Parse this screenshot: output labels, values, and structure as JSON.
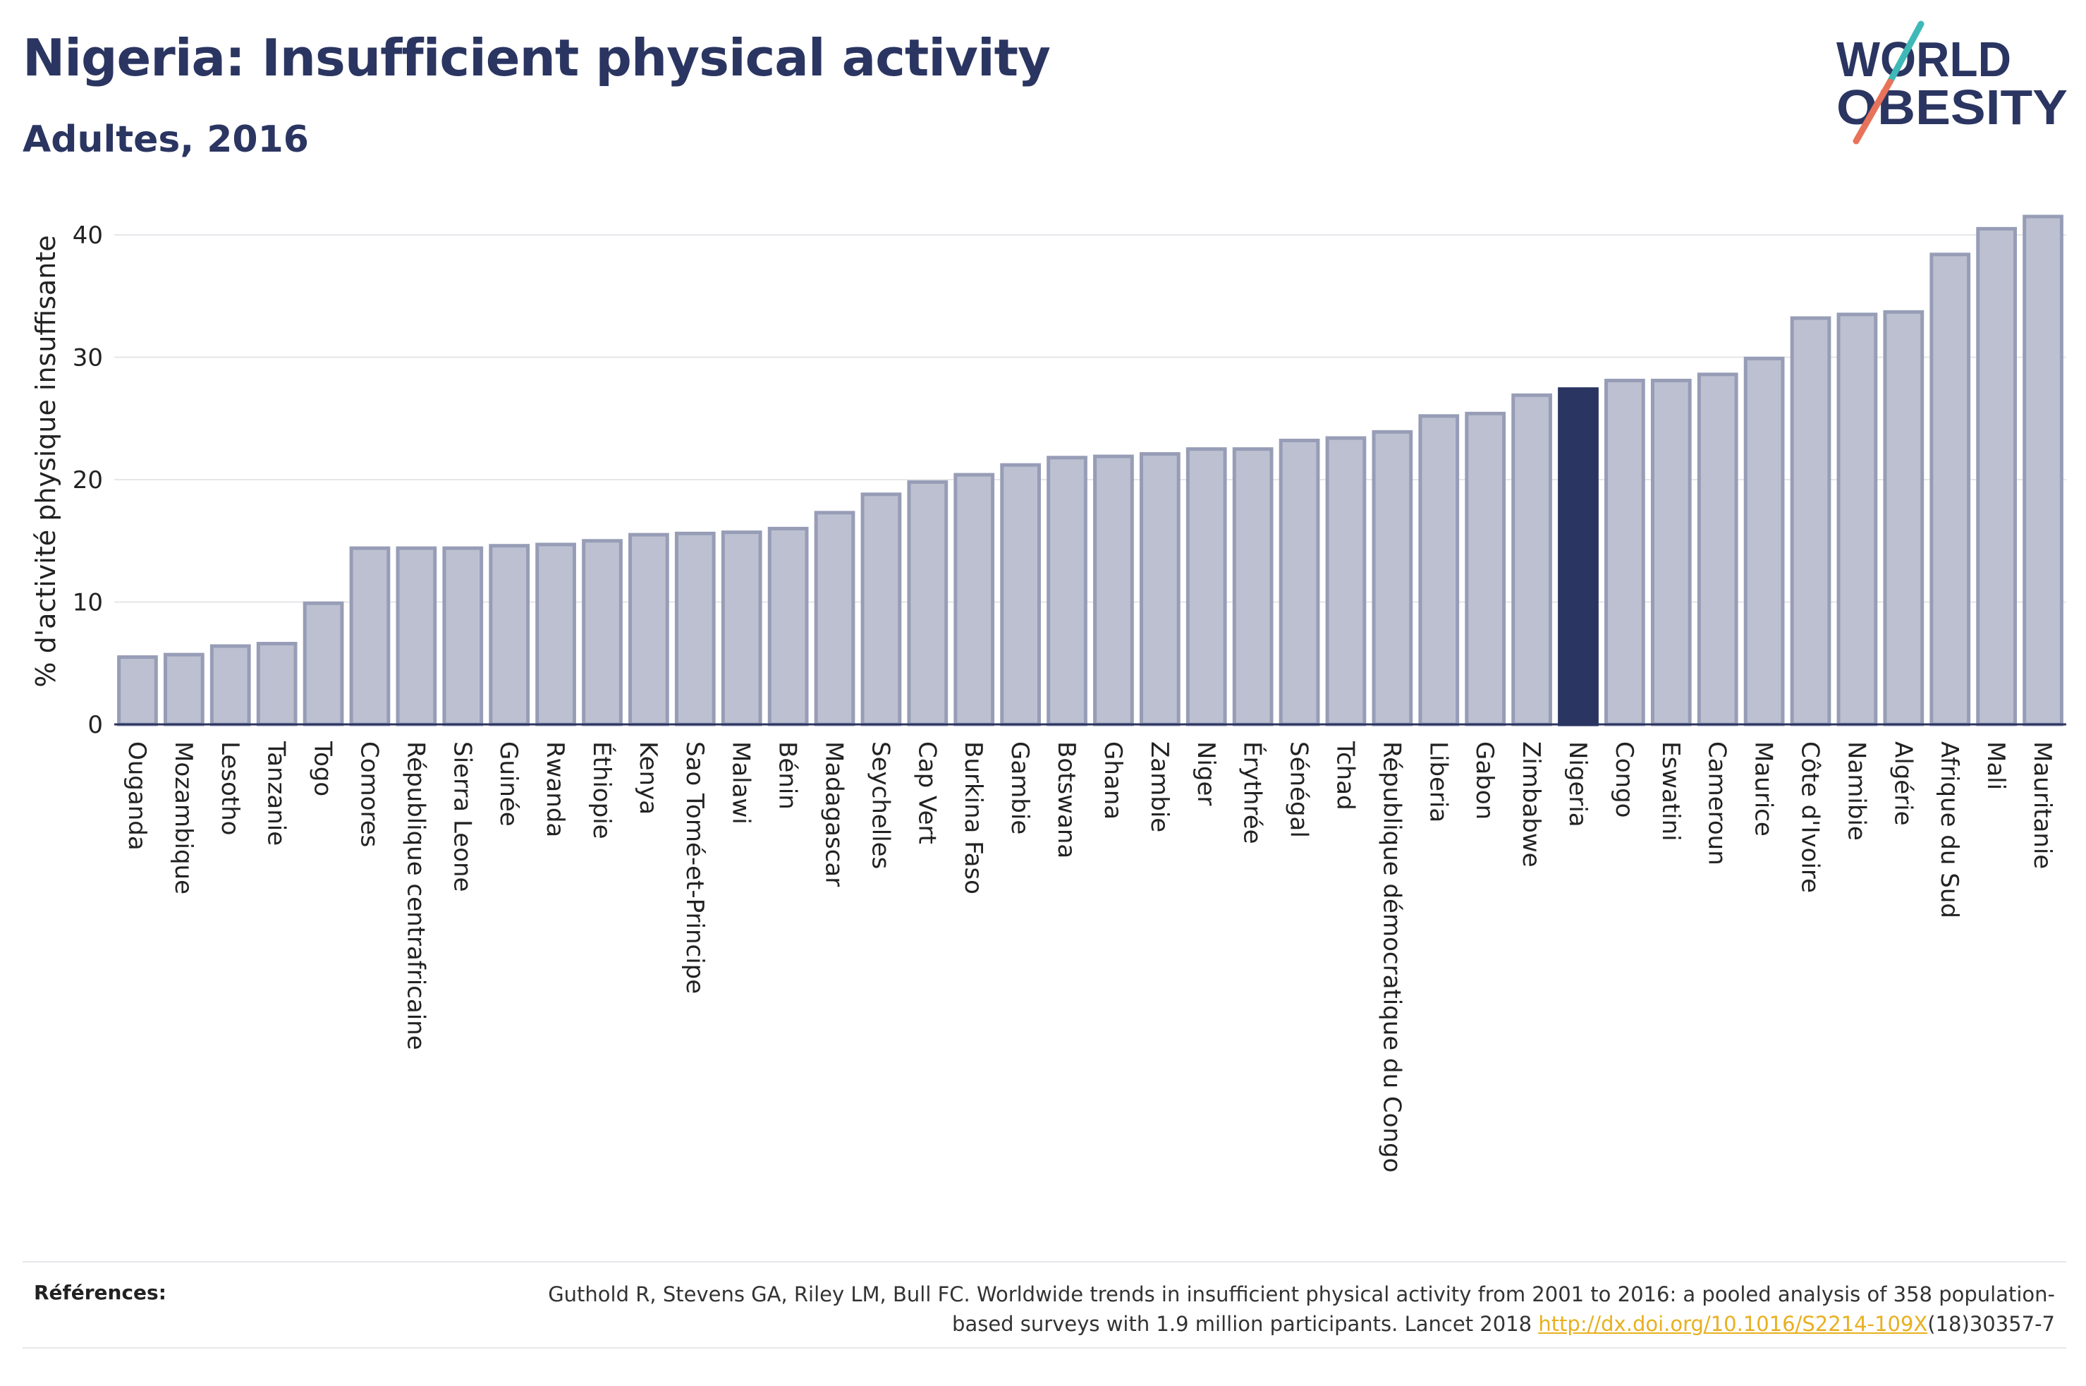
{
  "title": "Nigeria: Insufficient physical activity",
  "subtitle": "Adultes, 2016",
  "logo": {
    "line1": "WORLD",
    "line2": "OBESITY",
    "colors": {
      "text": "#2b3561",
      "slash_teal": "#3fb8b8",
      "slash_coral": "#e8735a"
    }
  },
  "colors": {
    "bar_default_fill": "#bcc0d0",
    "bar_default_stroke": "#979db6",
    "bar_highlight": "#2b3561",
    "axis": "#2b3561",
    "grid": "#e6e6ea",
    "link": "#e8b020"
  },
  "chart_data": {
    "type": "bar",
    "ylabel": "% d'activité physique insuffisante",
    "xlabel": "",
    "ylim": [
      0,
      43
    ],
    "yticks": [
      0,
      10,
      20,
      30,
      40
    ],
    "grid": true,
    "highlight": "Nigeria",
    "categories": [
      "Ouganda",
      "Mozambique",
      "Lesotho",
      "Tanzanie",
      "Togo",
      "Comores",
      "République centrafricaine",
      "Sierra Leone",
      "Guinée",
      "Rwanda",
      "Éthiopie",
      "Kenya",
      "Sao Tomé-et-Principe",
      "Malawi",
      "Bénin",
      "Madagascar",
      "Seychelles",
      "Cap Vert",
      "Burkina Faso",
      "Gambie",
      "Botswana",
      "Ghana",
      "Zambie",
      "Niger",
      "Érythrée",
      "Sénégal",
      "Tchad",
      "République démocratique du Congo",
      "Liberia",
      "Gabon",
      "Zimbabwe",
      "Nigeria",
      "Congo",
      "Eswatini",
      "Cameroun",
      "Maurice",
      "Côte d'Ivoire",
      "Namibie",
      "Algérie",
      "Afrique du Sud",
      "Mali",
      "Mauritanie"
    ],
    "values": [
      5.5,
      5.7,
      6.4,
      6.6,
      9.9,
      14.4,
      14.4,
      14.4,
      14.6,
      14.7,
      15.0,
      15.5,
      15.6,
      15.7,
      16.0,
      17.3,
      18.8,
      19.8,
      20.4,
      21.2,
      21.8,
      21.9,
      22.1,
      22.5,
      22.5,
      23.2,
      23.4,
      23.9,
      25.2,
      25.4,
      26.9,
      27.4,
      28.1,
      28.1,
      28.6,
      29.9,
      33.2,
      33.5,
      33.7,
      38.4,
      40.5,
      41.5
    ]
  },
  "references": {
    "label": "Références:",
    "text_part1": "Guthold R, Stevens GA, Riley LM, Bull FC. Worldwide trends in insufficient physical activity from 2001 to 2016: a pooled analysis of 358 population-based surveys with 1.9 million participants. Lancet 2018 ",
    "link_text": "http://dx.doi.org/10.1016/S2214-109X",
    "text_part2": "(18)30357-7"
  }
}
